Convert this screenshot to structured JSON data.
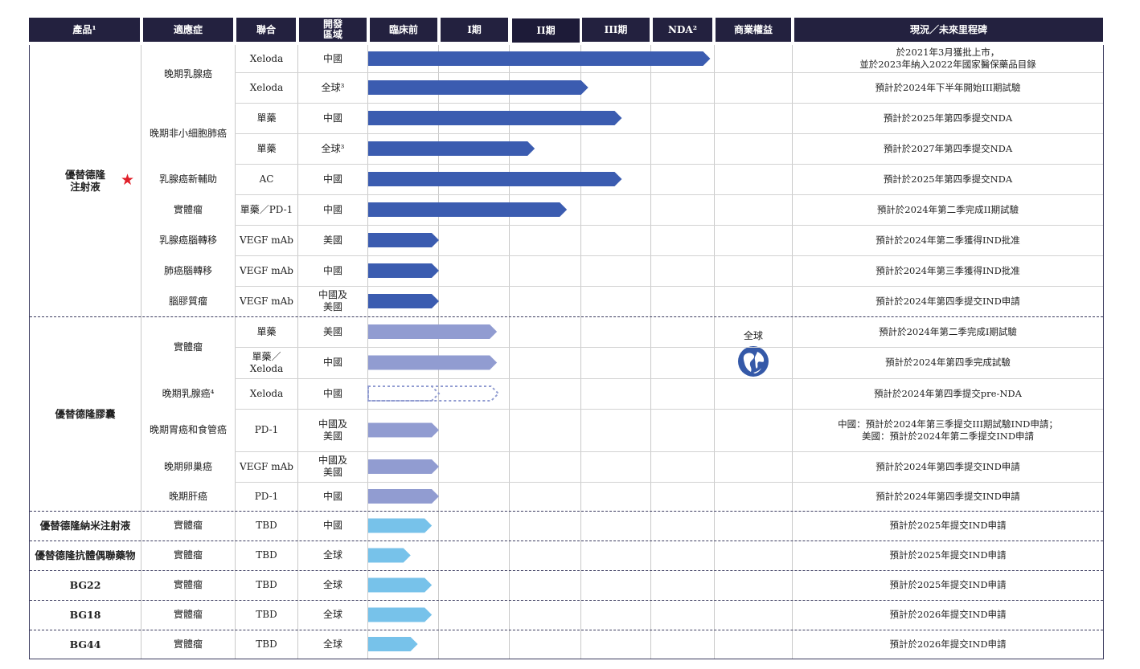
{
  "headers": {
    "product": "產品¹",
    "indication": "適應症",
    "combo": "聯合",
    "region": "開發\n區域",
    "preclinical": "臨床前",
    "phase1": "I期",
    "phase2": "II期",
    "phase3": "III期",
    "nda": "NDA²",
    "rights": "商業權益",
    "status": "現況／未來里程碑"
  },
  "rights": {
    "label": "全球",
    "icon": "globe-icon"
  },
  "colors": {
    "header_bg": "#23213f",
    "bar_dark": "#3b5cb0",
    "bar_medium": "#919cd1",
    "bar_light": "#77c2ea",
    "star": "#e0202a"
  },
  "products": [
    {
      "name": "優替德隆\n注射液",
      "starred": true
    },
    {
      "name": "優替德隆膠囊"
    },
    {
      "name": "優替德隆納米注射液"
    },
    {
      "name": "優替德隆抗體偶聯藥物"
    },
    {
      "name": "BG22"
    },
    {
      "name": "BG18"
    },
    {
      "name": "BG44"
    }
  ],
  "indications": [
    "晚期乳腺癌",
    "晚期非小細胞肺癌",
    "乳腺癌新輔助",
    "實體瘤",
    "乳腺癌腦轉移",
    "肺癌腦轉移",
    "腦膠質瘤",
    "實體瘤",
    "晚期乳腺癌⁴",
    "晚期胃癌和食管癌",
    "晚期卵巢癌",
    "晚期肝癌",
    "實體瘤",
    "實體瘤",
    "實體瘤",
    "實體瘤",
    "實體瘤"
  ],
  "rows": [
    {
      "combo": "Xeloda",
      "region": "中國",
      "stage": 4.93,
      "tone": "dark",
      "status": "於2021年3月獲批上市，\n並於2023年納入2022年國家醫保藥品目錄"
    },
    {
      "combo": "Xeloda",
      "region": "全球³",
      "stage": 3.1,
      "tone": "dark",
      "status": "預計於2024年下半年開始III期試驗"
    },
    {
      "combo": "單藥",
      "region": "中國",
      "stage": 3.58,
      "tone": "dark",
      "status": "預計於2025年第四季提交NDA"
    },
    {
      "combo": "單藥",
      "region": "全球³",
      "stage": 2.35,
      "tone": "dark",
      "status": "預計於2027年第四季提交NDA"
    },
    {
      "combo": "AC",
      "region": "中國",
      "stage": 3.58,
      "tone": "dark",
      "status": "預計於2025年第四季提交NDA"
    },
    {
      "combo": "單藥／PD-1",
      "region": "中國",
      "stage": 2.8,
      "tone": "dark",
      "status": "預計於2024年第二季完成II期試驗"
    },
    {
      "combo": "VEGF mAb",
      "region": "美國",
      "stage": 1.0,
      "tone": "dark",
      "status": "預計於2024年第二季獲得IND批准"
    },
    {
      "combo": "VEGF mAb",
      "region": "中國",
      "stage": 1.0,
      "tone": "dark",
      "status": "預計於2024年第三季獲得IND批准"
    },
    {
      "combo": "VEGF mAb",
      "region": "中國及\n美國",
      "stage": 1.0,
      "tone": "dark",
      "status": "預計於2024年第四季提交IND申請"
    },
    {
      "combo": "單藥",
      "region": "美國",
      "stage": 1.82,
      "tone": "medium",
      "status": "預計於2024年第二季完成I期試驗"
    },
    {
      "combo": "單藥／\nXeloda",
      "region": "中國",
      "stage": 1.82,
      "tone": "medium",
      "status": "預計於2024年第四季完成試驗"
    },
    {
      "combo": "Xeloda",
      "region": "中國",
      "stage": 1.0,
      "planned_stage": 1.84,
      "tone": "medium",
      "dotted": true,
      "status": "預計於2024年第四季提交pre-NDA"
    },
    {
      "combo": "PD-1",
      "region": "中國及\n美國",
      "stage": 1.0,
      "tone": "medium",
      "status": "中國：預計於2024年第三季提交III期試驗IND申請；\n美國：預計於2024年第二季提交IND申請"
    },
    {
      "combo": "VEGF mAb",
      "region": "中國及\n美國",
      "stage": 1.0,
      "tone": "medium",
      "status": "預計於2024年第四季提交IND申請"
    },
    {
      "combo": "PD-1",
      "region": "中國",
      "stage": 1.0,
      "tone": "medium",
      "status": "預計於2024年第四季提交IND申請"
    },
    {
      "combo": "TBD",
      "region": "中國",
      "stage": 0.9,
      "tone": "light",
      "status": "預計於2025年提交IND申請"
    },
    {
      "combo": "TBD",
      "region": "全球",
      "stage": 0.6,
      "tone": "light",
      "status": "預計於2025年提交IND申請"
    },
    {
      "combo": "TBD",
      "region": "全球",
      "stage": 0.9,
      "tone": "light",
      "status": "預計於2025年提交IND申請"
    },
    {
      "combo": "TBD",
      "region": "全球",
      "stage": 0.9,
      "tone": "light",
      "status": "預計於2026年提交IND申請"
    },
    {
      "combo": "TBD",
      "region": "全球",
      "stage": 0.7,
      "tone": "light",
      "status": "預計於2026年提交IND申請"
    }
  ]
}
